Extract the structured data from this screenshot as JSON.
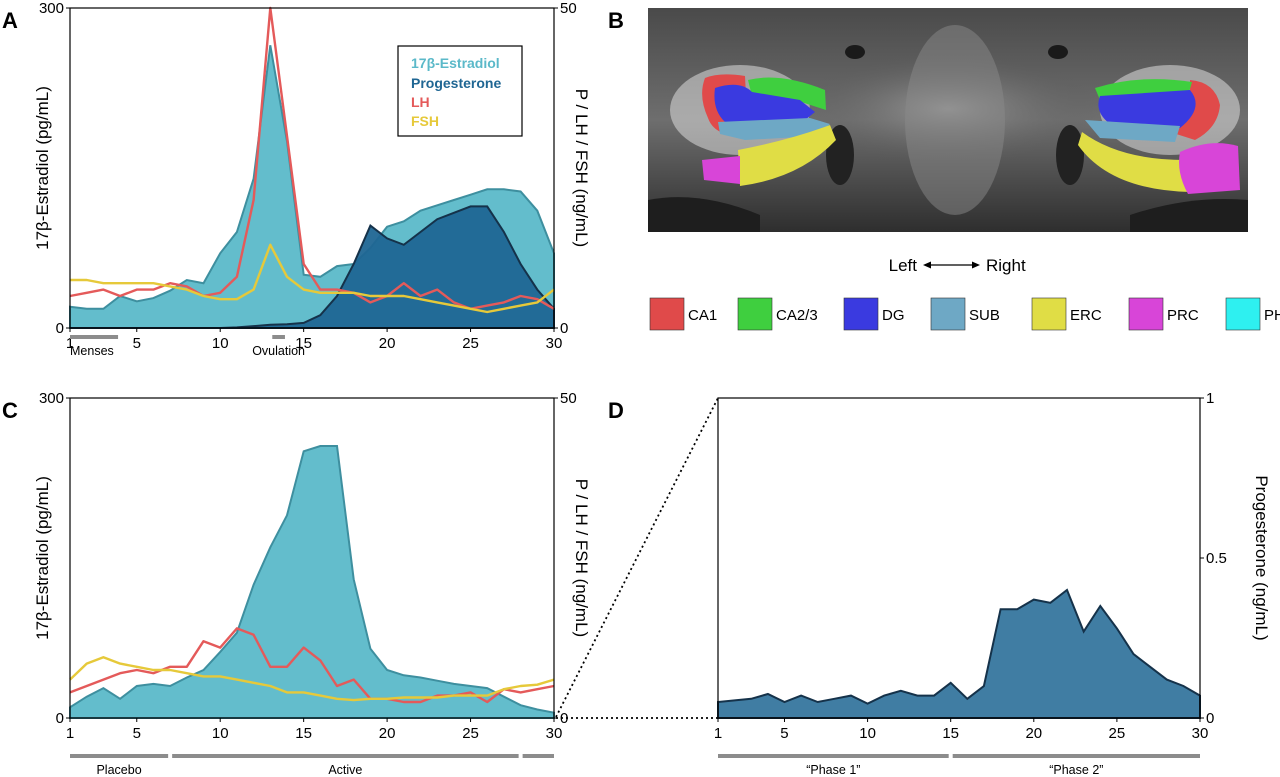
{
  "panels": {
    "A": "A",
    "B": "B",
    "C": "C",
    "D": "D"
  },
  "colors": {
    "estradiol": "#5bb9c9",
    "progesterone": "#1f6693",
    "lh": "#e45a5a",
    "fsh": "#e6c93a",
    "bar": "#8c8c8c"
  },
  "chart_data": [
    {
      "id": "A",
      "type": "area",
      "xlabel": "",
      "ylabel": "17β-Estradiol (pg/mL)",
      "ylabel_right": "P / LH / FSH (ng/mL)",
      "xlim": [
        1,
        30
      ],
      "ylim": [
        0,
        300
      ],
      "ylim_right": [
        0,
        50
      ],
      "xticks": [
        "1",
        "5",
        "10",
        "15",
        "20",
        "25",
        "30"
      ],
      "yticks": [
        "0",
        "300"
      ],
      "yticks_right": [
        "0",
        "50"
      ],
      "legend": [
        "17β-Estradiol",
        "Progesterone",
        "LH",
        "FSH"
      ],
      "legend_position": "top-right",
      "phase_bars": [
        {
          "label": "Menses",
          "start": 1,
          "end": 4
        },
        {
          "label": "Ovulation",
          "start": 13,
          "end": 14
        }
      ],
      "x": [
        1,
        2,
        3,
        4,
        5,
        6,
        7,
        8,
        9,
        10,
        11,
        12,
        13,
        14,
        15,
        16,
        17,
        18,
        19,
        20,
        21,
        22,
        23,
        24,
        25,
        26,
        27,
        28,
        29,
        30
      ],
      "series": [
        {
          "name": "17β-Estradiol",
          "axis": "left",
          "values": [
            20,
            18,
            18,
            30,
            25,
            28,
            35,
            45,
            42,
            70,
            90,
            140,
            265,
            175,
            50,
            48,
            58,
            60,
            75,
            95,
            100,
            110,
            115,
            120,
            125,
            130,
            130,
            128,
            110,
            70
          ]
        },
        {
          "name": "Progesterone",
          "axis": "right",
          "values": [
            0,
            0,
            0,
            0,
            0,
            0,
            0,
            0,
            0,
            0,
            0.1,
            0.3,
            0.5,
            0.6,
            0.8,
            2,
            5,
            10,
            16,
            14,
            13,
            15,
            17,
            18,
            19,
            19,
            15,
            10,
            6,
            3
          ]
        },
        {
          "name": "LH",
          "axis": "right",
          "values": [
            5,
            5.5,
            6,
            5,
            6,
            6,
            7,
            6.5,
            5,
            5.5,
            8,
            20,
            50,
            30,
            10,
            6,
            6,
            5.5,
            4,
            5,
            7,
            5,
            6,
            4,
            3,
            3.5,
            4,
            5,
            4.5,
            3
          ]
        },
        {
          "name": "FSH",
          "axis": "right",
          "values": [
            7.5,
            7.5,
            7,
            7,
            7,
            7,
            6.5,
            6,
            5,
            4.5,
            4.5,
            6,
            13,
            8,
            6,
            5.5,
            5.5,
            5.5,
            5,
            5,
            5,
            4.5,
            4,
            3.5,
            3,
            2.5,
            3,
            3.5,
            4,
            6
          ]
        }
      ]
    },
    {
      "id": "C",
      "type": "area",
      "xlabel": "",
      "ylabel": "17β-Estradiol (pg/mL)",
      "ylabel_right": "P / LH / FSH (ng/mL)",
      "xlim": [
        1,
        30
      ],
      "ylim": [
        0,
        300
      ],
      "ylim_right": [
        0,
        50
      ],
      "xticks": [
        "1",
        "5",
        "10",
        "15",
        "20",
        "25",
        "30"
      ],
      "yticks": [
        "0",
        "300"
      ],
      "yticks_right": [
        "0",
        "50"
      ],
      "phase_bars": [
        {
          "label": "Placebo",
          "start": 1,
          "end": 7
        },
        {
          "label": "Active",
          "start": 7,
          "end": 28
        },
        {
          "label": "",
          "start": 28,
          "end": 30
        }
      ],
      "x": [
        1,
        2,
        3,
        4,
        5,
        6,
        7,
        8,
        9,
        10,
        11,
        12,
        13,
        14,
        15,
        16,
        17,
        18,
        19,
        20,
        21,
        22,
        23,
        24,
        25,
        26,
        27,
        28,
        29,
        30
      ],
      "series": [
        {
          "name": "17β-Estradiol",
          "axis": "left",
          "values": [
            10,
            20,
            28,
            18,
            30,
            32,
            30,
            38,
            45,
            62,
            80,
            125,
            160,
            190,
            250,
            255,
            255,
            130,
            65,
            45,
            40,
            38,
            35,
            32,
            30,
            28,
            20,
            12,
            8,
            5
          ]
        },
        {
          "name": "LH",
          "axis": "right",
          "values": [
            4,
            5,
            6,
            7,
            7.5,
            7,
            8,
            8,
            12,
            11,
            14,
            13,
            8,
            8,
            11,
            9,
            5,
            6,
            3,
            3,
            2.5,
            2.5,
            3.5,
            3.5,
            4,
            2.5,
            4.5,
            4,
            4.5,
            5
          ]
        },
        {
          "name": "FSH",
          "axis": "right",
          "values": [
            6,
            8.5,
            9.5,
            8.5,
            8,
            7.5,
            7.5,
            7,
            6.5,
            6.5,
            6,
            5.5,
            5,
            4,
            4,
            3.5,
            3,
            2.8,
            3,
            3,
            3.2,
            3.2,
            3.2,
            3.5,
            3.5,
            3.5,
            4.5,
            5,
            5.2,
            6
          ]
        }
      ]
    },
    {
      "id": "D",
      "type": "area",
      "xlabel": "",
      "ylabel": "Progesterone (ng/mL)",
      "xlim": [
        1,
        30
      ],
      "ylim": [
        0,
        1
      ],
      "xticks": [
        "1",
        "5",
        "10",
        "15",
        "20",
        "25",
        "30"
      ],
      "yticks": [
        "0",
        "0.5",
        "1"
      ],
      "phase_bars": [
        {
          "label": "“Phase 1”",
          "start": 1,
          "end": 15
        },
        {
          "label": "“Phase 2”",
          "start": 15,
          "end": 30
        }
      ],
      "x": [
        1,
        2,
        3,
        4,
        5,
        6,
        7,
        8,
        9,
        10,
        11,
        12,
        13,
        14,
        15,
        16,
        17,
        18,
        19,
        20,
        21,
        22,
        23,
        24,
        25,
        26,
        27,
        28,
        29,
        30
      ],
      "series": [
        {
          "name": "Progesterone",
          "values": [
            0.05,
            0.055,
            0.06,
            0.075,
            0.05,
            0.07,
            0.05,
            0.06,
            0.07,
            0.045,
            0.07,
            0.085,
            0.07,
            0.07,
            0.11,
            0.06,
            0.1,
            0.34,
            0.34,
            0.37,
            0.36,
            0.4,
            0.27,
            0.35,
            0.28,
            0.2,
            0.16,
            0.12,
            0.1,
            0.07
          ]
        }
      ]
    }
  ],
  "brain": {
    "direction_left": "Left",
    "direction_right": "Right",
    "regions": [
      {
        "label": "CA1",
        "color": "#e04a4a"
      },
      {
        "label": "CA2/3",
        "color": "#3fcf3f"
      },
      {
        "label": "DG",
        "color": "#3a3ae0"
      },
      {
        "label": "SUB",
        "color": "#6ea8c5"
      },
      {
        "label": "ERC",
        "color": "#e0dd45"
      },
      {
        "label": "PRC",
        "color": "#d845d8"
      },
      {
        "label": "PHC",
        "color": "#2ef0f0"
      }
    ]
  }
}
